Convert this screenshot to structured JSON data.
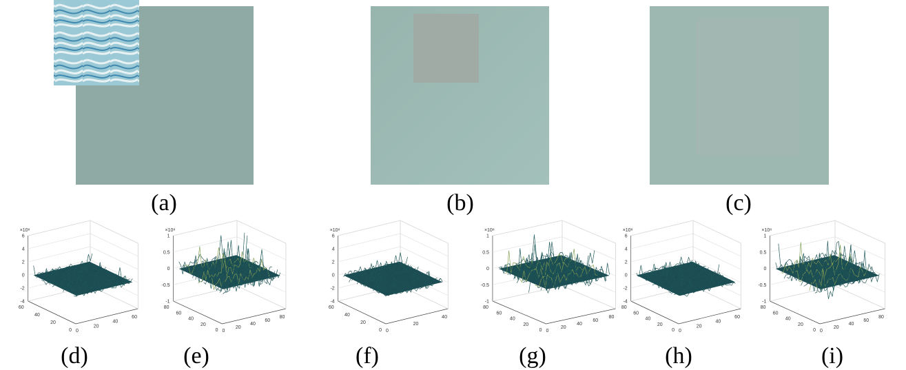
{
  "figure": {
    "images": [
      {
        "caption": "(a)"
      },
      {
        "caption": "(b)"
      },
      {
        "caption": "(c)"
      }
    ],
    "plots": [
      {
        "caption": "(d)",
        "exponent": "×10⁸",
        "zticks": [
          "6",
          "4",
          "2",
          "0",
          "-2",
          "-4"
        ],
        "left_ticks": [
          "60",
          "40",
          "20",
          "0"
        ],
        "right_ticks": [
          "0",
          "20",
          "40",
          "60"
        ]
      },
      {
        "caption": "(e)",
        "exponent": "×10⁸",
        "zticks": [
          "1",
          "0.5",
          "0",
          "-0.5",
          "-1"
        ],
        "left_ticks": [
          "80",
          "60",
          "40",
          "20",
          "0"
        ],
        "right_ticks": [
          "0",
          "20",
          "40",
          "60",
          "80"
        ]
      },
      {
        "caption": "(f)",
        "exponent": "×10⁸",
        "zticks": [
          "6",
          "4",
          "2",
          "0",
          "-2",
          "-4"
        ],
        "left_ticks": [
          "60",
          "40",
          "20",
          "0"
        ],
        "right_ticks": [
          "0",
          "20",
          "40"
        ]
      },
      {
        "caption": "(g)",
        "exponent": "×10⁸",
        "zticks": [
          "1",
          "0.5",
          "0",
          "-0.5",
          "-1"
        ],
        "left_ticks": [
          "80",
          "60",
          "40",
          "20",
          "0"
        ],
        "right_ticks": [
          "0",
          "20",
          "40",
          "60",
          "80"
        ]
      },
      {
        "caption": "(h)",
        "exponent": "×10⁸",
        "zticks": [
          "6",
          "4",
          "2",
          "0",
          "-2",
          "-4"
        ],
        "left_ticks": [
          "80",
          "60",
          "40",
          "20",
          "0"
        ],
        "right_ticks": [
          "0",
          "20",
          "40",
          "60"
        ]
      },
      {
        "caption": "(i)",
        "exponent": "×10⁸",
        "zticks": [
          "1",
          "0.5",
          "0",
          "-0.5",
          "-1"
        ],
        "left_ticks": [
          "80",
          "60",
          "40",
          "20",
          "0"
        ],
        "right_ticks": [
          "0",
          "20",
          "40",
          "60",
          "80"
        ]
      }
    ]
  }
}
